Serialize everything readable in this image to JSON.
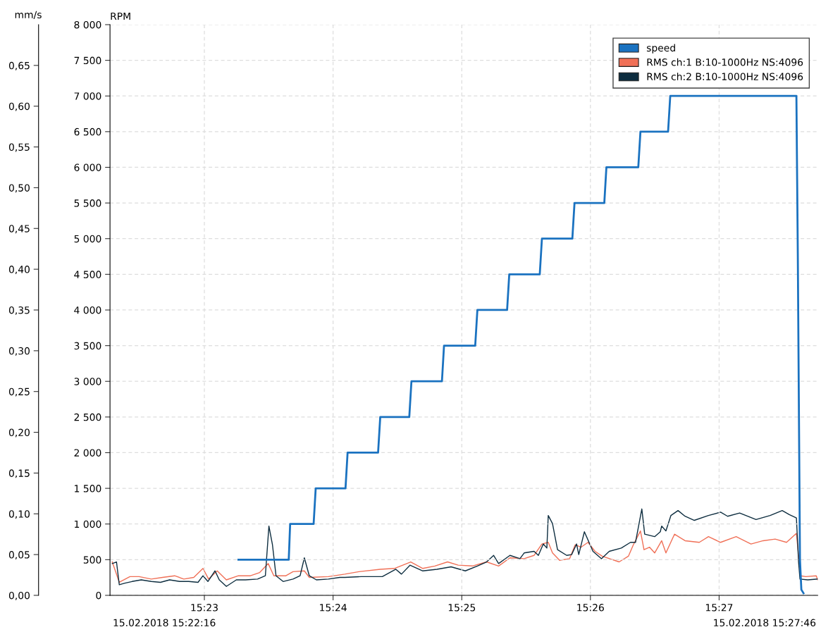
{
  "chart_data": {
    "type": "line",
    "ylabel": "RPM",
    "y2label": "mm/s",
    "xlim": [
      15.37111,
      15.46277
    ],
    "xticks": [
      {
        "value": 15.38333,
        "label": "15:23"
      },
      {
        "value": 15.4,
        "label": "15:24"
      },
      {
        "value": 15.41667,
        "label": "15:25"
      },
      {
        "value": 15.43333,
        "label": "15:26"
      },
      {
        "value": 15.45,
        "label": "15:27"
      }
    ],
    "ylim": [
      0,
      8000
    ],
    "yticks": [
      0,
      500,
      {
        "value": 1000,
        "label": "1 000"
      },
      {
        "value": 1500,
        "label": "1 500"
      },
      {
        "value": 2000,
        "label": "2 000"
      },
      {
        "value": 2500,
        "label": "2 500"
      },
      {
        "value": 3000,
        "label": "3 000"
      },
      {
        "value": 3500,
        "label": "3 500"
      },
      {
        "value": 4000,
        "label": "4 000"
      },
      {
        "value": 4500,
        "label": "4 500"
      },
      {
        "value": 5000,
        "label": "5 000"
      },
      {
        "value": 5500,
        "label": "5 500"
      },
      {
        "value": 6000,
        "label": "6 000"
      },
      {
        "value": 6500,
        "label": "6 500"
      },
      {
        "value": 7000,
        "label": "7 000"
      },
      {
        "value": 7500,
        "label": "7 500"
      },
      {
        "value": 8000,
        "label": "8 000"
      }
    ],
    "y2lim": [
      0,
      0.7
    ],
    "y2ticks": [
      {
        "value": 0,
        "label": "0,00"
      },
      {
        "value": 0.05,
        "label": "0,05"
      },
      {
        "value": 0.1,
        "label": "0,10"
      },
      {
        "value": 0.15,
        "label": "0,15"
      },
      {
        "value": 0.2,
        "label": "0,20"
      },
      {
        "value": 0.25,
        "label": "0,25"
      },
      {
        "value": 0.3,
        "label": "0,30"
      },
      {
        "value": 0.35,
        "label": "0,35"
      },
      {
        "value": 0.4,
        "label": "0,40"
      },
      {
        "value": 0.45,
        "label": "0,45"
      },
      {
        "value": 0.5,
        "label": "0,50"
      },
      {
        "value": 0.55,
        "label": "0,55"
      },
      {
        "value": 0.6,
        "label": "0,60"
      },
      {
        "value": 0.65,
        "label": "0,65"
      }
    ],
    "grid": true,
    "legend": "top right",
    "marker": "none",
    "line_style": "solid",
    "series": [
      {
        "name": "speed",
        "color": "#1a72c0",
        "x": [
          15.38774,
          15.39426,
          15.39444,
          15.39748,
          15.39775,
          15.40161,
          15.40188,
          15.40583,
          15.40611,
          15.40987,
          15.41015,
          15.4141,
          15.41437,
          15.41841,
          15.41869,
          15.42254,
          15.42282,
          15.42677,
          15.42705,
          15.43099,
          15.43127,
          15.43513,
          15.4354,
          15.43953,
          15.43981,
          15.44339,
          15.44367,
          15.46001,
          15.46019,
          15.46047,
          15.46065,
          15.46093
        ],
        "values": [
          500,
          500,
          1000,
          1000,
          1500,
          1500,
          2000,
          2000,
          2500,
          2500,
          3000,
          3000,
          3500,
          3500,
          4000,
          4000,
          4500,
          4500,
          5000,
          5000,
          5500,
          5500,
          6000,
          6000,
          6500,
          6500,
          7000,
          7000,
          4800,
          500,
          80,
          30
        ]
      },
      {
        "name": "RMS ch:1 B:10-1000Hz NS:4096",
        "color": "#f07057",
        "axis": "y2",
        "x": [
          15.3714,
          15.37231,
          15.37369,
          15.37488,
          15.37645,
          15.37792,
          15.37948,
          15.38067,
          15.38196,
          15.38315,
          15.38388,
          15.38499,
          15.38618,
          15.38774,
          15.3893,
          15.3905,
          15.3916,
          15.39233,
          15.39389,
          15.39481,
          15.39628,
          15.39692,
          15.3994,
          15.40152,
          15.40335,
          15.40611,
          15.40794,
          15.41006,
          15.41162,
          15.41318,
          15.41483,
          15.41621,
          15.41805,
          15.41988,
          15.42144,
          15.42291,
          15.42475,
          15.42603,
          15.42705,
          15.42787,
          15.42842,
          15.42934,
          15.43063,
          15.43136,
          15.4321,
          15.43302,
          15.43393,
          15.43485,
          15.43705,
          15.43825,
          15.43889,
          15.43981,
          15.44027,
          15.441,
          15.44165,
          15.44256,
          15.44311,
          15.44422,
          15.44559,
          15.44743,
          15.44862,
          15.45019,
          15.45221,
          15.45413,
          15.4557,
          15.45726,
          15.45873,
          15.46001,
          15.4601,
          15.46056,
          15.46121,
          15.46258,
          15.46277
        ],
        "values": [
          0.041,
          0.016,
          0.023,
          0.023,
          0.02,
          0.022,
          0.024,
          0.02,
          0.022,
          0.033,
          0.02,
          0.03,
          0.019,
          0.024,
          0.024,
          0.028,
          0.039,
          0.024,
          0.024,
          0.029,
          0.03,
          0.022,
          0.023,
          0.026,
          0.029,
          0.032,
          0.033,
          0.041,
          0.033,
          0.036,
          0.041,
          0.037,
          0.036,
          0.041,
          0.036,
          0.046,
          0.045,
          0.049,
          0.063,
          0.065,
          0.052,
          0.043,
          0.045,
          0.062,
          0.059,
          0.065,
          0.054,
          0.048,
          0.041,
          0.048,
          0.062,
          0.079,
          0.056,
          0.059,
          0.052,
          0.067,
          0.052,
          0.075,
          0.067,
          0.065,
          0.072,
          0.065,
          0.072,
          0.063,
          0.067,
          0.069,
          0.065,
          0.076,
          0.067,
          0.024,
          0.023,
          0.024,
          0.019
        ]
      },
      {
        "name": "RMS ch:2 B:10-1000Hz NS:4096",
        "color": "#0d2d3f",
        "axis": "y2",
        "x": [
          15.3714,
          15.37195,
          15.37231,
          15.37305,
          15.37397,
          15.37516,
          15.37645,
          15.37764,
          15.37883,
          15.38012,
          15.38131,
          15.38251,
          15.38315,
          15.38379,
          15.38471,
          15.38526,
          15.38618,
          15.38747,
          15.38866,
          15.39022,
          15.39123,
          15.39169,
          15.39215,
          15.39261,
          15.39353,
          15.39481,
          15.39573,
          15.39628,
          15.39692,
          15.39784,
          15.3994,
          15.40087,
          15.40152,
          15.40363,
          15.40638,
          15.40813,
          15.40886,
          15.40996,
          15.41162,
          15.41345,
          15.41529,
          15.41713,
          15.41869,
          15.41988,
          15.4208,
          15.42144,
          15.42291,
          15.4242,
          15.42475,
          15.42603,
          15.42659,
          15.42723,
          15.42769,
          15.42787,
          15.42842,
          15.42907,
          15.43026,
          15.4309,
          15.43154,
          15.43182,
          15.43255,
          15.43366,
          15.43476,
          15.43577,
          15.43733,
          15.43852,
          15.43917,
          15.43999,
          15.44036,
          15.44165,
          15.44238,
          15.44256,
          15.44311,
          15.44376,
          15.44468,
          15.44559,
          15.44679,
          15.44862,
          15.45019,
          15.4511,
          15.45266,
          15.45478,
          15.45661,
          15.45817,
          15.45909,
          15.46001,
          15.46029,
          15.46047,
          15.46148,
          15.46277
        ],
        "values": [
          0.039,
          0.041,
          0.013,
          0.015,
          0.017,
          0.019,
          0.017,
          0.016,
          0.019,
          0.017,
          0.017,
          0.016,
          0.024,
          0.017,
          0.03,
          0.019,
          0.011,
          0.019,
          0.019,
          0.02,
          0.024,
          0.085,
          0.062,
          0.024,
          0.017,
          0.02,
          0.024,
          0.046,
          0.024,
          0.019,
          0.02,
          0.022,
          0.022,
          0.023,
          0.023,
          0.032,
          0.026,
          0.037,
          0.03,
          0.032,
          0.035,
          0.03,
          0.036,
          0.041,
          0.049,
          0.039,
          0.049,
          0.045,
          0.052,
          0.054,
          0.049,
          0.063,
          0.058,
          0.098,
          0.088,
          0.056,
          0.049,
          0.05,
          0.063,
          0.05,
          0.078,
          0.054,
          0.045,
          0.054,
          0.058,
          0.065,
          0.065,
          0.106,
          0.075,
          0.072,
          0.078,
          0.085,
          0.079,
          0.098,
          0.104,
          0.097,
          0.092,
          0.098,
          0.102,
          0.097,
          0.101,
          0.093,
          0.098,
          0.104,
          0.099,
          0.095,
          0.041,
          0.02,
          0.019,
          0.02
        ]
      }
    ],
    "annotations": [
      "15.02.2018 15:22:16",
      "15.02.2018 15:27:46"
    ]
  }
}
